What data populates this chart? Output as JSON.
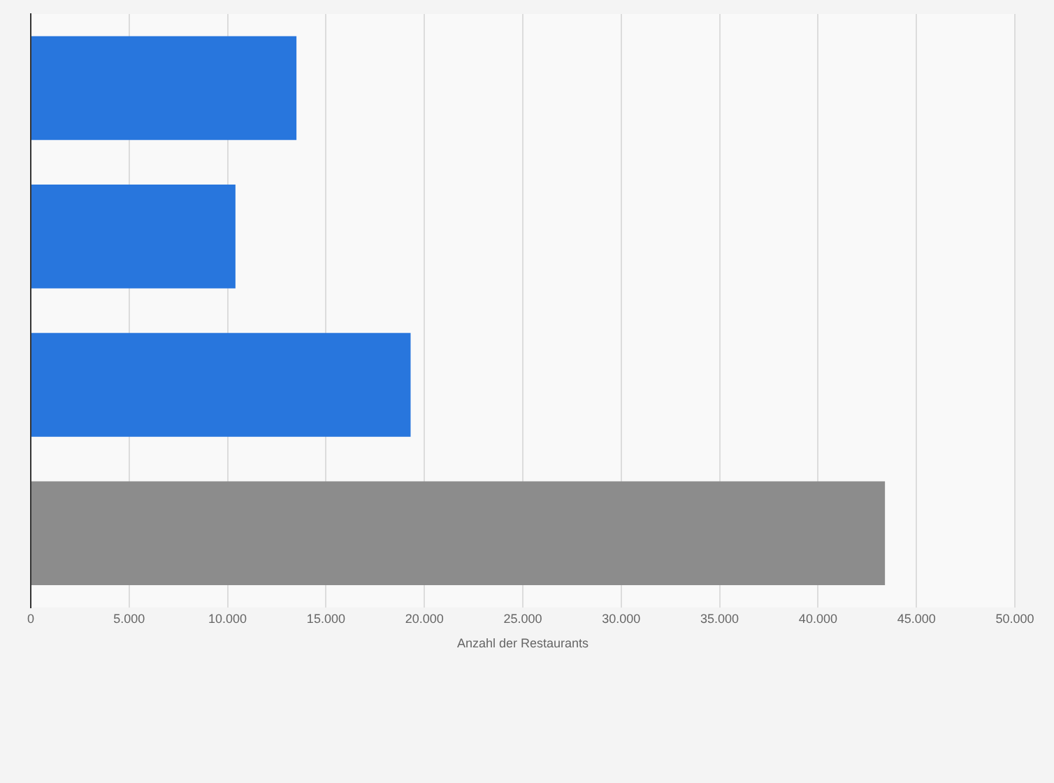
{
  "chart_data": {
    "type": "bar",
    "orientation": "horizontal",
    "xlabel": "Anzahl der Restaurants",
    "categories": [
      null,
      null,
      null,
      null
    ],
    "values": [
      13500,
      10400,
      19300,
      43400
    ],
    "colors": [
      "#2876dd",
      "#2876dd",
      "#2876dd",
      "#8c8c8c"
    ],
    "xlim": [
      0,
      50000
    ],
    "xticks": [
      0,
      {
        "value": 5000,
        "label": "5.000"
      },
      {
        "value": 10000,
        "label": "10.000"
      },
      {
        "value": 15000,
        "label": "15.000"
      },
      {
        "value": 20000,
        "label": "20.000"
      },
      {
        "value": 25000,
        "label": "25.000"
      },
      {
        "value": 30000,
        "label": "30.000"
      },
      {
        "value": 35000,
        "label": "35.000"
      },
      {
        "value": 40000,
        "label": "40.000"
      },
      {
        "value": 45000,
        "label": "45.000"
      },
      {
        "value": 50000,
        "label": "50.000"
      }
    ],
    "grid": "x",
    "legend": false
  }
}
